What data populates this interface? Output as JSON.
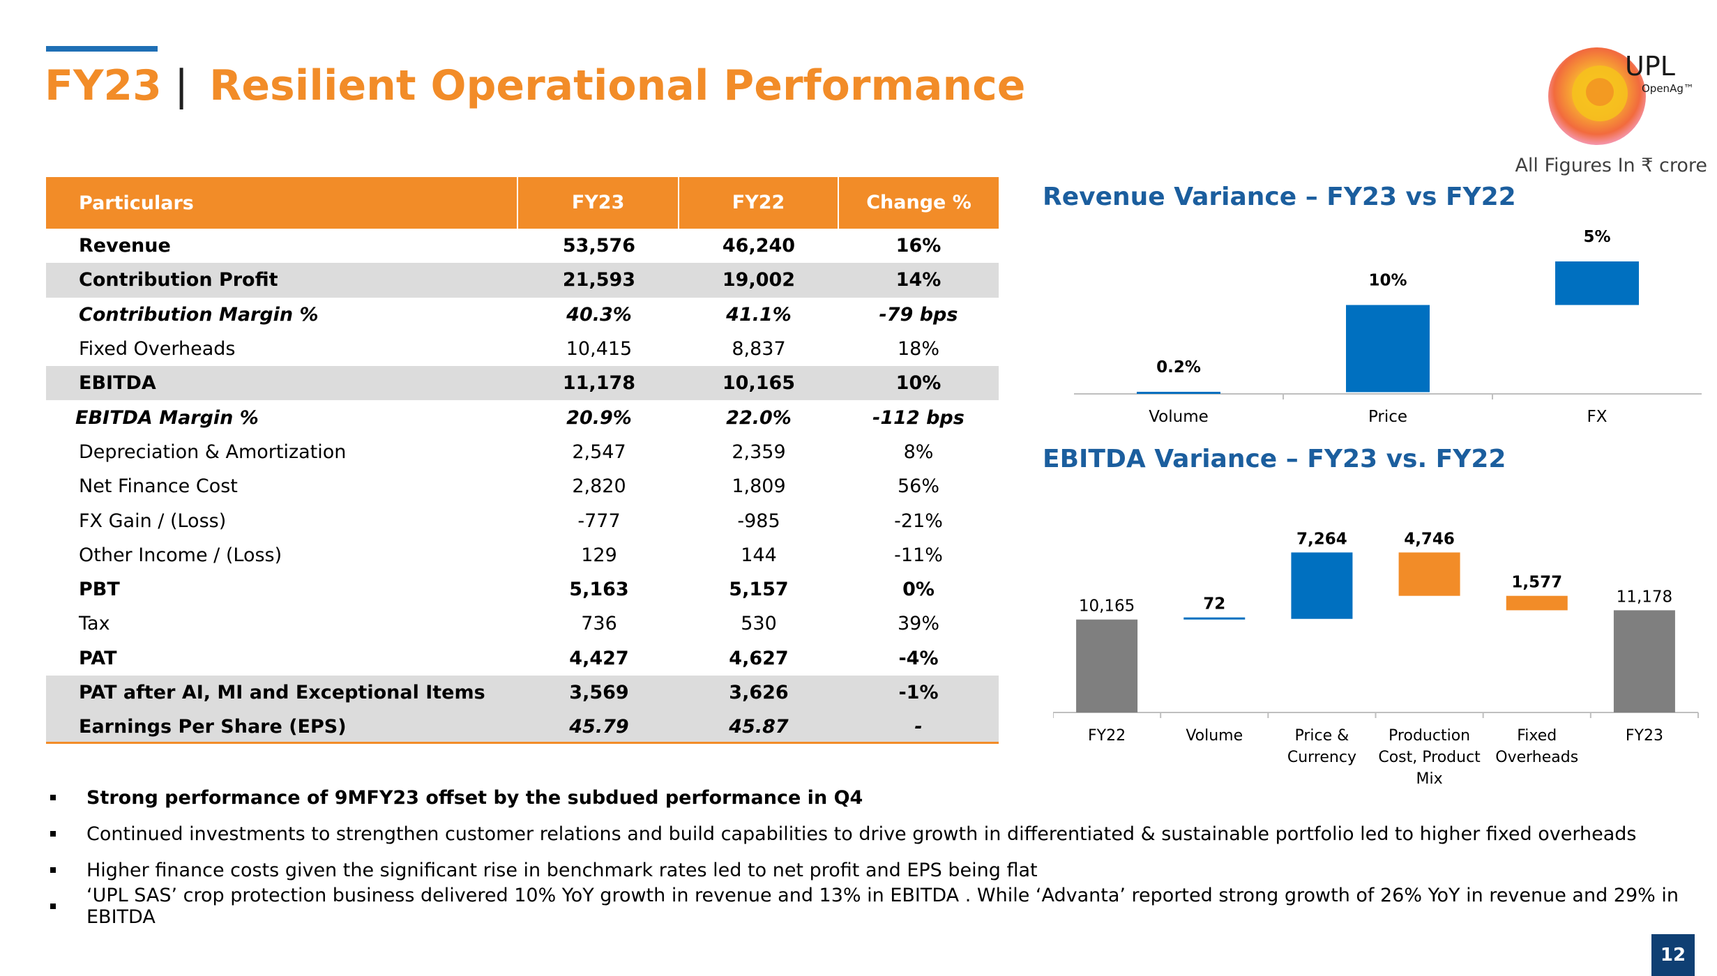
{
  "header": {
    "title_prefix": "FY23",
    "title_sep": "|",
    "title_main": "Resilient Operational Performance",
    "logo_text": "UPL",
    "logo_sub": "OpenAg™",
    "units": "All Figures In ₹ crore"
  },
  "table": {
    "headers": [
      "Particulars",
      "FY23",
      "FY22",
      "Change %"
    ],
    "rows": [
      {
        "label": "Revenue",
        "fy23": "53,576",
        "fy22": "46,240",
        "change": "16%"
      },
      {
        "label": "Contribution Profit",
        "fy23": "21,593",
        "fy22": "19,002",
        "change": "14%"
      },
      {
        "label": "Contribution Margin %",
        "fy23": "40.3%",
        "fy22": "41.1%",
        "change": "-79 bps"
      },
      {
        "label": "Fixed Overheads",
        "fy23": "10,415",
        "fy22": "8,837",
        "change": "18%"
      },
      {
        "label": "EBITDA",
        "fy23": "11,178",
        "fy22": "10,165",
        "change": "10%"
      },
      {
        "label": "EBITDA Margin %",
        "fy23": "20.9%",
        "fy22": "22.0%",
        "change": "-112 bps"
      },
      {
        "label": "Depreciation & Amortization",
        "fy23": "2,547",
        "fy22": "2,359",
        "change": "8%"
      },
      {
        "label": "Net Finance Cost",
        "fy23": "2,820",
        "fy22": "1,809",
        "change": "56%"
      },
      {
        "label": "FX Gain / (Loss)",
        "fy23": "-777",
        "fy22": "-985",
        "change": "-21%"
      },
      {
        "label": "Other Income / (Loss)",
        "fy23": "129",
        "fy22": "144",
        "change": "-11%"
      },
      {
        "label": "PBT",
        "fy23": "5,163",
        "fy22": "5,157",
        "change": "0%"
      },
      {
        "label": "Tax",
        "fy23": "736",
        "fy22": "530",
        "change": "39%"
      },
      {
        "label": "PAT",
        "fy23": "4,427",
        "fy22": "4,627",
        "change": "-4%"
      },
      {
        "label": "PAT after AI, MI and Exceptional Items",
        "fy23": "3,569",
        "fy22": "3,626",
        "change": "-1%"
      },
      {
        "label": "Earnings Per Share (EPS)",
        "fy23": "45.79",
        "fy22": "45.87",
        "change": "-"
      }
    ]
  },
  "chart_data": [
    {
      "type": "bar",
      "title": "Revenue Variance – FY23 vs FY22",
      "categories": [
        "Volume",
        "Price",
        "FX"
      ],
      "values": [
        0.2,
        10,
        5
      ],
      "labels": [
        "0.2%",
        "10%",
        "5%"
      ],
      "style": "waterfall",
      "color": "#0070c0"
    },
    {
      "type": "bar",
      "title": "EBITDA Variance – FY23 vs. FY22",
      "categories": [
        "FY22",
        "Volume",
        "Price & Currency",
        "Production Cost, Product Mix",
        "Fixed Overheads",
        "FY23"
      ],
      "values": [
        10165,
        72,
        7264,
        -4746,
        -1577,
        11178
      ],
      "labels": [
        "10,165",
        "72",
        "7,264",
        "4,746",
        "1,577",
        "11,178"
      ],
      "style": "waterfall",
      "colors": {
        "total": "#7f7f7f",
        "increase": "#0070c0",
        "decrease": "#f28c28"
      }
    }
  ],
  "bullets": [
    "Strong performance of 9MFY23 offset by the subdued performance in Q4",
    "Continued investments to strengthen customer relations and build capabilities to drive growth in differentiated & sustainable portfolio led to higher fixed overheads",
    "Higher finance costs given the significant rise in benchmark rates led to net profit and EPS being flat",
    "‘UPL SAS’ crop protection business delivered 10% YoY growth in revenue and 13% in EBITDA . While ‘Advanta’ reported strong growth of 26% YoY in revenue and 29% in EBITDA"
  ],
  "page_number": "12"
}
